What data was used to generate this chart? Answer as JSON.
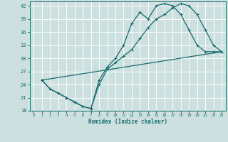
{
  "xlabel": "Humidex (Indice chaleur)",
  "xlim": [
    -0.5,
    23.5
  ],
  "ylim": [
    18,
    43
  ],
  "xticks": [
    0,
    1,
    2,
    3,
    4,
    5,
    6,
    7,
    8,
    9,
    10,
    11,
    12,
    13,
    14,
    15,
    16,
    17,
    18,
    19,
    20,
    21,
    22,
    23
  ],
  "yticks": [
    18,
    21,
    24,
    27,
    30,
    33,
    36,
    39,
    42
  ],
  "bg_color": "#cce0e0",
  "grid_color": "#ffffff",
  "line_color": "#1a6b6b",
  "line1_x": [
    1,
    2,
    3,
    4,
    5,
    6,
    7,
    7,
    8,
    9,
    10,
    11,
    12,
    13,
    14,
    15,
    16,
    17,
    18,
    19,
    20,
    21,
    22,
    23
  ],
  "line1_y": [
    25,
    23,
    22,
    21,
    20,
    19,
    18.5,
    18.5,
    25,
    28,
    30,
    33,
    38,
    40.5,
    39,
    42,
    42.5,
    42,
    40,
    36.5,
    33,
    31.5,
    31.5,
    31.5
  ],
  "line2_x": [
    1,
    2,
    3,
    4,
    5,
    6,
    7,
    8,
    9,
    10,
    11,
    12,
    13,
    14,
    15,
    16,
    17,
    18,
    19,
    20,
    21,
    22,
    23
  ],
  "line2_y": [
    25,
    23,
    22,
    21,
    20,
    19,
    18.5,
    24,
    27.5,
    29,
    30.5,
    32,
    34.5,
    37,
    39,
    40,
    41.5,
    42.5,
    42,
    40,
    36.5,
    33,
    31.5
  ],
  "line3_x": [
    1,
    23
  ],
  "line3_y": [
    25,
    31.5
  ]
}
